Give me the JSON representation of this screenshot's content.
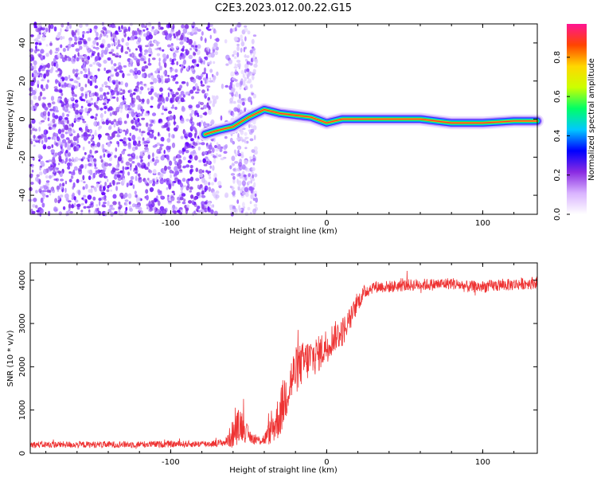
{
  "title": "C2E3.2023.012.00.22.G15",
  "chart_data": [
    {
      "type": "heatmap",
      "xlabel": "Height of straight line (km)",
      "ylabel": "Frequency (Hz)",
      "xlim": [
        -190,
        135
      ],
      "ylim": [
        -50,
        50
      ],
      "xticks": [
        -100,
        0,
        100
      ],
      "yticks": [
        40,
        20,
        0,
        -20,
        -40
      ],
      "colorbar": {
        "label": "Normalized spectral amplitude",
        "range": [
          0,
          0.97
        ],
        "ticks": [
          0.0,
          0.2,
          0.4,
          0.6,
          0.8
        ],
        "colors": [
          "#ffffff",
          "#d9b3ff",
          "#8a2be2",
          "#0000ff",
          "#00c8ff",
          "#00ff66",
          "#ccff00",
          "#ffd700",
          "#ff4500",
          "#ff1493"
        ]
      },
      "noise_region": {
        "x_range": [
          -190,
          -45
        ]
      },
      "signal_trace": {
        "x": [
          -78,
          -70,
          -60,
          -50,
          -40,
          -35,
          -30,
          -20,
          -10,
          0,
          10,
          20,
          40,
          60,
          80,
          100,
          120,
          135
        ],
        "freq": [
          -8,
          -6,
          -4,
          1,
          5,
          4,
          3,
          2,
          1,
          -2,
          0,
          0,
          0,
          0,
          -2,
          -2,
          -1,
          -1
        ]
      }
    },
    {
      "type": "line",
      "xlabel": "Height of straight line (km)",
      "ylabel": "SNR (10 * v/v)",
      "xlim": [
        -190,
        135
      ],
      "ylim": [
        0,
        4400
      ],
      "xticks": [
        -100,
        0,
        100
      ],
      "yticks": [
        0,
        1000,
        2000,
        3000,
        4000
      ],
      "color": "#ee3333",
      "series": [
        {
          "x": [
            -190,
            -150,
            -100,
            -75,
            -65,
            -60,
            -55,
            -50,
            -45,
            -40,
            -35,
            -30,
            -25,
            -20,
            -15,
            -10,
            -5,
            0,
            5,
            10,
            15,
            20,
            25,
            30,
            40,
            50,
            60,
            70,
            80,
            90,
            100,
            110,
            120,
            135
          ],
          "values": [
            200,
            200,
            210,
            220,
            250,
            450,
            700,
            400,
            300,
            320,
            550,
            900,
            1500,
            1900,
            2100,
            2200,
            2300,
            2500,
            2700,
            2800,
            3100,
            3500,
            3750,
            3850,
            3850,
            3880,
            3900,
            3900,
            3930,
            3850,
            3850,
            3880,
            3900,
            3950
          ],
          "noise": [
            110,
            110,
            110,
            110,
            120,
            500,
            600,
            250,
            150,
            200,
            500,
            800,
            900,
            800,
            700,
            700,
            600,
            600,
            500,
            500,
            400,
            300,
            250,
            200,
            200,
            200,
            200,
            200,
            200,
            200,
            200,
            200,
            200,
            200
          ]
        }
      ]
    }
  ]
}
